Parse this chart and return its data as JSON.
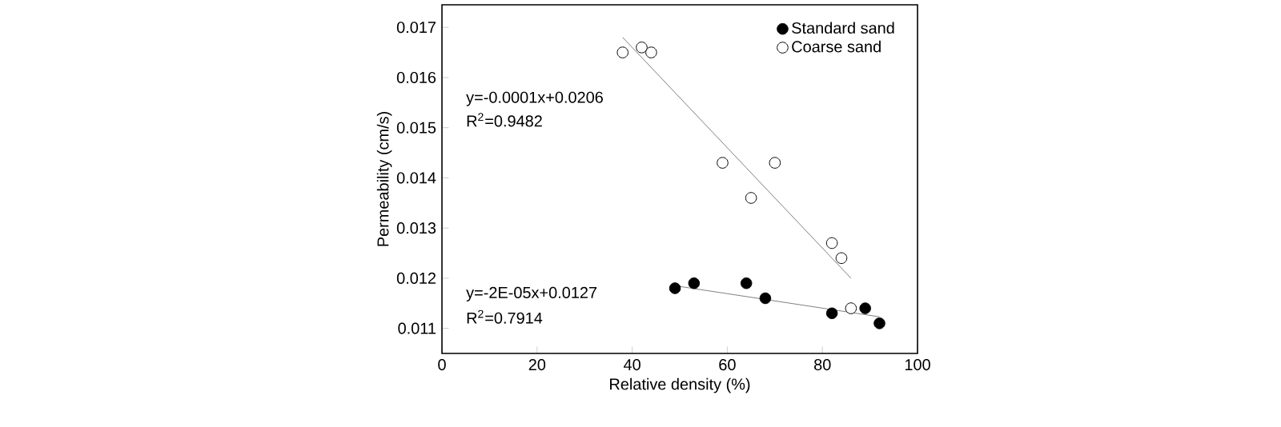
{
  "chart_data": {
    "type": "scatter",
    "xlabel": "Relative density (%)",
    "ylabel": "Permeability (cm/s)",
    "xlim": [
      0,
      100
    ],
    "ylim": [
      0.0105,
      0.01745
    ],
    "xticks": [
      0,
      20,
      40,
      60,
      80,
      100
    ],
    "yticks": [
      0.011,
      0.012,
      0.013,
      0.014,
      0.015,
      0.016,
      0.017
    ],
    "legend": "top right",
    "grid": false,
    "annotations": [
      "y=-0.0001x+0.0206",
      "R$^{2}$=0.9482",
      "y=-2E-05x+0.0127",
      "R$^{2}$=0.7914"
    ],
    "series": [
      {
        "name": "Standard sand",
        "marker": "circle",
        "color": "#000000",
        "x": [
          49,
          53,
          64,
          68,
          82,
          89,
          92
        ],
        "values": [
          0.0118,
          0.0119,
          0.0119,
          0.0116,
          0.0113,
          0.0114,
          0.0111
        ]
      },
      {
        "name": "Coarse sand",
        "marker": "circle",
        "color": "#ffffff",
        "x": [
          38,
          42,
          44,
          59,
          65,
          70,
          82,
          84,
          86
        ],
        "values": [
          0.0165,
          0.0166,
          0.0165,
          0.0143,
          0.0136,
          0.0143,
          0.0127,
          0.0124,
          0.0114
        ]
      },
      {
        "type": "line",
        "marker": "none",
        "color": "#808080",
        "x": [
          38,
          86
        ],
        "values": [
          0.0168,
          0.012
        ]
      },
      {
        "type": "line",
        "marker": "none",
        "color": "#808080",
        "x": [
          49,
          92
        ],
        "values": [
          0.01185,
          0.01123
        ]
      }
    ]
  }
}
